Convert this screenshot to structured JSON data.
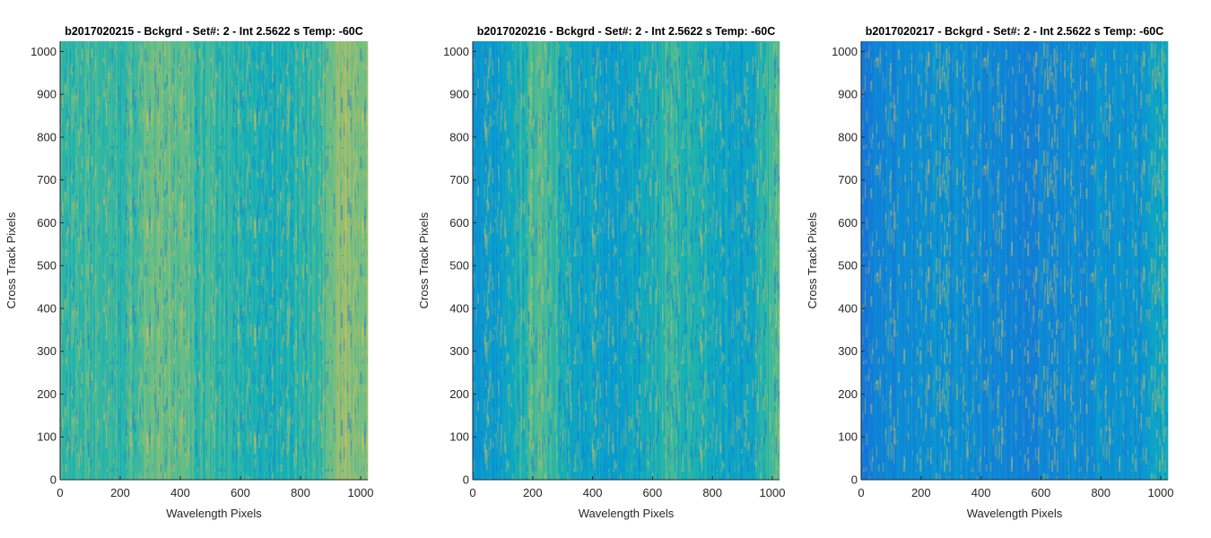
{
  "chart_data": [
    {
      "type": "heatmap",
      "title": "b2017020215 - Bckgrd - Set#: 2 - Int 2.5622 s Temp: -60C",
      "xlabel": "Wavelength Pixels",
      "ylabel": "Cross Track Pixels",
      "xlim": [
        0,
        1024
      ],
      "ylim": [
        0,
        1024
      ],
      "xticks": [
        0,
        200,
        400,
        600,
        800,
        1000
      ],
      "yticks": [
        0,
        100,
        200,
        300,
        400,
        500,
        600,
        700,
        800,
        900,
        1000
      ],
      "xtick_labels": [
        "0",
        "200",
        "400",
        "600",
        "800",
        "1000"
      ],
      "ytick_labels": [
        "0",
        "100",
        "200",
        "300",
        "400",
        "500",
        "600",
        "700",
        "800",
        "900",
        "1000"
      ],
      "colormap": "parula",
      "column_level_profile": [
        {
          "x": 0,
          "level": 0.55
        },
        {
          "x": 100,
          "level": 0.57
        },
        {
          "x": 200,
          "level": 0.55
        },
        {
          "x": 330,
          "level": 0.66
        },
        {
          "x": 420,
          "level": 0.6
        },
        {
          "x": 550,
          "level": 0.54
        },
        {
          "x": 700,
          "level": 0.5
        },
        {
          "x": 850,
          "level": 0.56
        },
        {
          "x": 950,
          "level": 0.7
        },
        {
          "x": 1024,
          "level": 0.66
        }
      ]
    },
    {
      "type": "heatmap",
      "title": "b2017020216 - Bckgrd - Set#: 2 - Int 2.5622 s Temp: -60C",
      "xlabel": "Wavelength Pixels",
      "ylabel": "Cross Track Pixels",
      "xlim": [
        0,
        1024
      ],
      "ylim": [
        0,
        1024
      ],
      "xticks": [
        0,
        200,
        400,
        600,
        800,
        1000
      ],
      "yticks": [
        0,
        100,
        200,
        300,
        400,
        500,
        600,
        700,
        800,
        900,
        1000
      ],
      "xtick_labels": [
        "0",
        "200",
        "400",
        "600",
        "800",
        "1000"
      ],
      "ytick_labels": [
        "0",
        "100",
        "200",
        "300",
        "400",
        "500",
        "600",
        "700",
        "800",
        "900",
        "1000"
      ],
      "colormap": "parula",
      "column_level_profile": [
        {
          "x": 0,
          "level": 0.4
        },
        {
          "x": 100,
          "level": 0.44
        },
        {
          "x": 220,
          "level": 0.62
        },
        {
          "x": 350,
          "level": 0.46
        },
        {
          "x": 500,
          "level": 0.42
        },
        {
          "x": 650,
          "level": 0.56
        },
        {
          "x": 800,
          "level": 0.48
        },
        {
          "x": 900,
          "level": 0.44
        },
        {
          "x": 1024,
          "level": 0.62
        }
      ]
    },
    {
      "type": "heatmap",
      "title": "b2017020217 - Bckgrd - Set#: 2 - Int 2.5622 s Temp: -60C",
      "xlabel": "Wavelength Pixels",
      "ylabel": "Cross Track Pixels",
      "xlim": [
        0,
        1024
      ],
      "ylim": [
        0,
        1024
      ],
      "xticks": [
        0,
        200,
        400,
        600,
        800,
        1000
      ],
      "yticks": [
        0,
        100,
        200,
        300,
        400,
        500,
        600,
        700,
        800,
        900,
        1000
      ],
      "xtick_labels": [
        "0",
        "200",
        "400",
        "600",
        "800",
        "1000"
      ],
      "ytick_labels": [
        "0",
        "100",
        "200",
        "300",
        "400",
        "500",
        "600",
        "700",
        "800",
        "900",
        "1000"
      ],
      "colormap": "parula",
      "column_level_profile": [
        {
          "x": 0,
          "level": 0.28
        },
        {
          "x": 150,
          "level": 0.36
        },
        {
          "x": 300,
          "level": 0.38
        },
        {
          "x": 450,
          "level": 0.34
        },
        {
          "x": 600,
          "level": 0.32
        },
        {
          "x": 800,
          "level": 0.38
        },
        {
          "x": 950,
          "level": 0.4
        },
        {
          "x": 1024,
          "level": 0.5
        }
      ]
    }
  ]
}
